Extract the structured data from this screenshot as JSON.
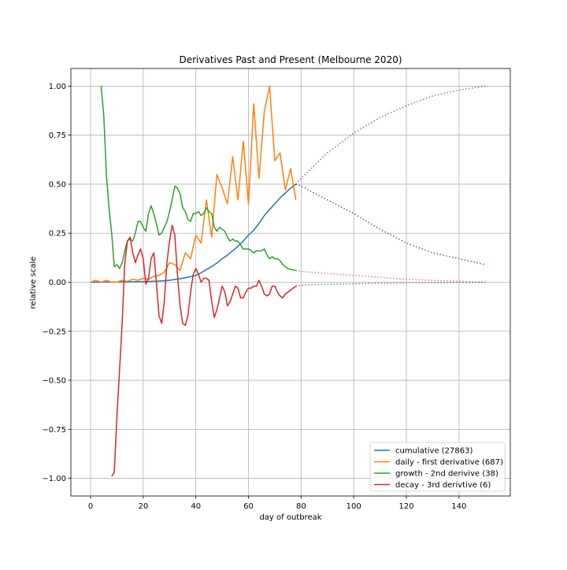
{
  "chart_data": {
    "type": "line",
    "title": "Derivatives Past and Present (Melbourne 2020)",
    "xlabel": "day of outbreak",
    "ylabel": "relative scale",
    "xlim": [
      -7.5,
      159.5
    ],
    "ylim": [
      -1.09,
      1.09
    ],
    "xticks": [
      0,
      20,
      40,
      60,
      80,
      100,
      120,
      140
    ],
    "xtick_labels": [
      "0",
      "20",
      "40",
      "60",
      "80",
      "100",
      "120",
      "140"
    ],
    "yticks": [
      -1.0,
      -0.75,
      -0.5,
      -0.25,
      0.0,
      0.25,
      0.5,
      0.75,
      1.0
    ],
    "ytick_labels": [
      "−1.00",
      "−0.75",
      "−0.50",
      "−0.25",
      "0.00",
      "0.25",
      "0.50",
      "0.75",
      "1.00"
    ],
    "grid": true,
    "legend_position": "lower-right",
    "series": [
      {
        "name": "cumulative (27863)",
        "color": "#1f77b4",
        "style": "solid",
        "x": [
          0,
          10,
          20,
          26,
          30,
          34,
          38,
          40,
          42,
          44,
          46,
          48,
          50,
          52,
          54,
          56,
          58,
          60,
          62,
          64,
          66,
          68,
          70,
          72,
          74,
          76,
          78
        ],
        "y": [
          0.0,
          0.001,
          0.003,
          0.006,
          0.01,
          0.018,
          0.028,
          0.035,
          0.048,
          0.065,
          0.08,
          0.098,
          0.12,
          0.138,
          0.16,
          0.183,
          0.21,
          0.24,
          0.265,
          0.3,
          0.34,
          0.37,
          0.4,
          0.43,
          0.455,
          0.48,
          0.5
        ]
      },
      {
        "name": "daily - first derivative (687)",
        "color": "#ff7f0e",
        "style": "solid",
        "x": [
          0,
          2,
          4,
          6,
          8,
          10,
          12,
          14,
          16,
          18,
          20,
          22,
          24,
          26,
          28,
          30,
          32,
          34,
          36,
          38,
          40,
          42,
          44,
          46,
          48,
          50,
          52,
          54,
          56,
          58,
          60,
          62,
          64,
          66,
          68,
          70,
          72,
          74,
          76,
          78
        ],
        "y": [
          0.0,
          0.01,
          0.0,
          0.01,
          0.0,
          0.0,
          0.01,
          0.005,
          0.015,
          0.01,
          0.02,
          0.015,
          0.03,
          0.035,
          0.05,
          0.1,
          0.09,
          0.06,
          0.15,
          0.12,
          0.24,
          0.2,
          0.42,
          0.23,
          0.55,
          0.48,
          0.4,
          0.64,
          0.42,
          0.72,
          0.4,
          0.91,
          0.53,
          0.87,
          1.0,
          0.62,
          0.66,
          0.47,
          0.58,
          0.42
        ]
      },
      {
        "name": "growth - 2nd derivive (38)",
        "color": "#2ca02c",
        "style": "solid",
        "x": [
          4,
          5,
          6,
          7,
          8,
          9,
          10,
          11,
          12,
          13,
          14,
          15,
          16,
          17,
          18,
          19,
          20,
          21,
          22,
          23,
          24,
          25,
          26,
          27,
          28,
          29,
          30,
          31,
          32,
          33,
          34,
          35,
          36,
          37,
          38,
          39,
          40,
          41,
          42,
          43,
          44,
          45,
          46,
          47,
          48,
          49,
          50,
          51,
          52,
          53,
          54,
          55,
          56,
          57,
          58,
          59,
          60,
          61,
          62,
          63,
          64,
          65,
          66,
          67,
          68,
          69,
          70,
          71,
          72,
          73,
          74,
          75,
          76,
          77,
          78
        ],
        "y": [
          1.0,
          0.85,
          0.55,
          0.38,
          0.25,
          0.08,
          0.09,
          0.07,
          0.1,
          0.16,
          0.21,
          0.22,
          0.21,
          0.25,
          0.31,
          0.31,
          0.28,
          0.26,
          0.35,
          0.39,
          0.35,
          0.3,
          0.24,
          0.25,
          0.28,
          0.31,
          0.36,
          0.42,
          0.49,
          0.48,
          0.45,
          0.38,
          0.36,
          0.32,
          0.31,
          0.35,
          0.35,
          0.36,
          0.34,
          0.35,
          0.38,
          0.36,
          0.35,
          0.28,
          0.26,
          0.28,
          0.27,
          0.26,
          0.23,
          0.21,
          0.22,
          0.21,
          0.21,
          0.19,
          0.17,
          0.17,
          0.17,
          0.16,
          0.15,
          0.16,
          0.16,
          0.16,
          0.17,
          0.14,
          0.12,
          0.13,
          0.12,
          0.12,
          0.11,
          0.09,
          0.08,
          0.07,
          0.065,
          0.063,
          0.06
        ]
      },
      {
        "name": "decay - 3rd derivtive (6)",
        "color": "#d62728",
        "style": "solid",
        "x": [
          8,
          9,
          10,
          11,
          12,
          13,
          14,
          15,
          16,
          17,
          18,
          19,
          20,
          21,
          22,
          23,
          24,
          25,
          26,
          27,
          28,
          29,
          30,
          31,
          32,
          33,
          34,
          35,
          36,
          37,
          38,
          39,
          40,
          41,
          42,
          43,
          44,
          45,
          46,
          47,
          48,
          49,
          50,
          51,
          52,
          53,
          54,
          55,
          56,
          57,
          58,
          59,
          60,
          61,
          62,
          63,
          64,
          65,
          66,
          67,
          68,
          69,
          70,
          71,
          72,
          73,
          74,
          75,
          76,
          77,
          78
        ],
        "y": [
          -0.99,
          -0.97,
          -0.68,
          -0.45,
          -0.2,
          0.1,
          0.21,
          0.23,
          0.15,
          0.1,
          0.14,
          0.17,
          0.12,
          -0.01,
          0.02,
          0.12,
          0.15,
          0.0,
          -0.17,
          -0.21,
          -0.1,
          0.1,
          0.21,
          0.29,
          0.24,
          0.04,
          -0.12,
          -0.21,
          -0.22,
          -0.17,
          -0.05,
          0.04,
          0.07,
          0.04,
          0.0,
          0.02,
          0.02,
          0.01,
          -0.1,
          -0.18,
          -0.14,
          -0.08,
          -0.02,
          -0.05,
          -0.12,
          -0.1,
          -0.06,
          -0.02,
          -0.03,
          -0.08,
          -0.08,
          -0.05,
          -0.03,
          -0.03,
          -0.02,
          -0.02,
          0.01,
          -0.02,
          -0.06,
          -0.07,
          -0.06,
          -0.02,
          -0.02,
          -0.05,
          -0.07,
          -0.08,
          -0.06,
          -0.05,
          -0.04,
          -0.03,
          -0.02
        ]
      }
    ],
    "projections": [
      {
        "color": "#9467bd",
        "style": "dotted",
        "x": [
          78,
          80,
          90,
          100,
          110,
          120,
          130,
          140,
          150
        ],
        "y": [
          0.5,
          0.53,
          0.66,
          0.76,
          0.84,
          0.9,
          0.95,
          0.98,
          1.0
        ]
      },
      {
        "color": "#8c564b",
        "style": "dotted",
        "x": [
          78,
          80,
          90,
          100,
          110,
          120,
          130,
          140,
          150
        ],
        "y": [
          0.5,
          0.49,
          0.42,
          0.35,
          0.27,
          0.2,
          0.15,
          0.12,
          0.09
        ]
      },
      {
        "color": "#e377c2",
        "style": "dotted",
        "x": [
          78,
          80,
          90,
          100,
          110,
          120,
          130,
          140,
          150
        ],
        "y": [
          0.06,
          0.055,
          0.045,
          0.035,
          0.025,
          0.015,
          0.01,
          0.005,
          0.002
        ]
      },
      {
        "color": "#7f7f7f",
        "style": "dotted",
        "x": [
          78,
          80,
          90,
          100,
          110,
          120,
          130,
          140,
          150
        ],
        "y": [
          -0.02,
          -0.015,
          -0.01,
          -0.008,
          -0.005,
          -0.003,
          -0.002,
          -0.001,
          -0.001
        ]
      }
    ]
  }
}
